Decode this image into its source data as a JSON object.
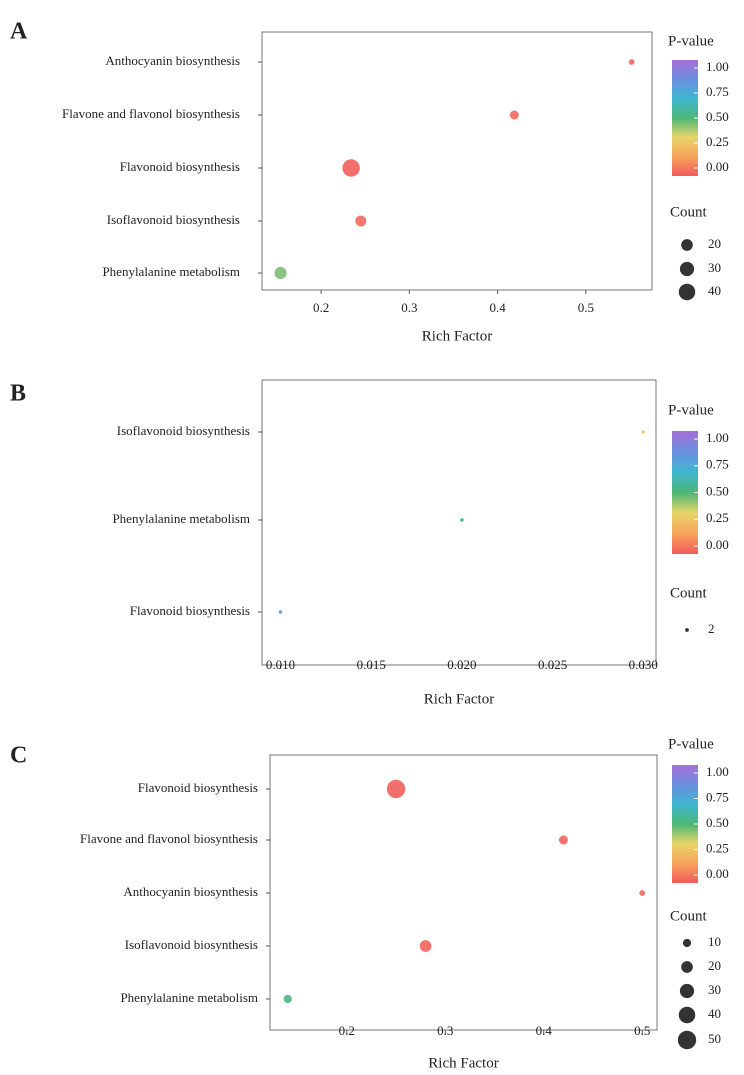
{
  "chart_data": [
    {
      "type": "bubble",
      "panel": "A",
      "x_label": "Rich Factor",
      "categories": [
        "Anthocyanin biosynthesis",
        "Flavone and flavonol biosynthesis",
        "Flavonoid biosynthesis",
        "Isoflavonoid biosynthesis",
        "Phenylalanine metabolism"
      ],
      "values": [
        0.552,
        0.419,
        0.234,
        0.245,
        0.154
      ],
      "counts": [
        5,
        12,
        45,
        18,
        22
      ],
      "pvalues": [
        0.02,
        0.03,
        0.01,
        0.03,
        0.45
      ],
      "xlim": [
        0.133,
        0.575
      ],
      "xticks": [
        0.2,
        0.3,
        0.4,
        0.5
      ],
      "color_title": "P-value",
      "color_ticks": [
        {
          "value": 1,
          "label": "1.00"
        },
        {
          "value": 0.75,
          "label": "0.75"
        },
        {
          "value": 0.5,
          "label": "0.50"
        },
        {
          "value": 0.25,
          "label": "0.25"
        },
        {
          "value": 0,
          "label": "0.00"
        }
      ],
      "colorscale": [
        "#f25b5b",
        "#f7a35c",
        "#e8d56a",
        "#4bb676",
        "#3fb6cf",
        "#6b8fe0",
        "#a56fd6"
      ],
      "size_title": "Count",
      "size_legend": [
        20,
        30,
        40
      ]
    },
    {
      "type": "bubble",
      "panel": "B",
      "x_label": "Rich Factor",
      "categories": [
        "Isoflavonoid biosynthesis",
        "Phenylalanine metabolism",
        "Flavonoid biosynthesis"
      ],
      "values": [
        0.03,
        0.02,
        0.01
      ],
      "counts": [
        2,
        2,
        2
      ],
      "pvalues": [
        0.3,
        0.55,
        0.75
      ],
      "xlim": [
        0.00898,
        0.0307
      ],
      "xticks": [
        {
          "value": 0.01,
          "label": "0.010"
        },
        {
          "value": 0.015,
          "label": "0.015"
        },
        {
          "value": 0.02,
          "label": "0.020"
        },
        {
          "value": 0.025,
          "label": "0.025"
        },
        {
          "value": 0.03,
          "label": "0.030"
        }
      ],
      "color_title": "P-value",
      "color_ticks": [
        {
          "value": 1,
          "label": "1.00"
        },
        {
          "value": 0.75,
          "label": "0.75"
        },
        {
          "value": 0.5,
          "label": "0.50"
        },
        {
          "value": 0.25,
          "label": "0.25"
        },
        {
          "value": 0,
          "label": "0.00"
        }
      ],
      "colorscale": [
        "#f25b5b",
        "#f7a35c",
        "#e8d56a",
        "#4bb676",
        "#3fb6cf",
        "#6b8fe0",
        "#a56fd6"
      ],
      "size_title": "Count",
      "size_legend": [
        2
      ]
    },
    {
      "type": "bubble",
      "panel": "C",
      "x_label": "Rich Factor",
      "categories": [
        "Flavonoid biosynthesis",
        "Flavone and flavonol biosynthesis",
        "Anthocyanin biosynthesis",
        "Isoflavonoid biosynthesis",
        "Phenylalanine metabolism"
      ],
      "values": [
        0.25,
        0.42,
        0.5,
        0.28,
        0.14
      ],
      "counts": [
        50,
        12,
        5,
        20,
        10
      ],
      "pvalues": [
        0.01,
        0.02,
        0.03,
        0.02,
        0.52
      ],
      "xlim": [
        0.122,
        0.515
      ],
      "xticks": [
        0.2,
        0.3,
        0.4,
        0.5
      ],
      "color_title": "P-value",
      "color_ticks": [
        {
          "value": 1,
          "label": "1.00"
        },
        {
          "value": 0.75,
          "label": "0.75"
        },
        {
          "value": 0.5,
          "label": "0.50"
        },
        {
          "value": 0.25,
          "label": "0.25"
        },
        {
          "value": 0,
          "label": "0.00"
        }
      ],
      "colorscale": [
        "#f25b5b",
        "#f7a35c",
        "#e8d56a",
        "#4bb676",
        "#3fb6cf",
        "#6b8fe0",
        "#a56fd6"
      ],
      "size_title": "Count",
      "size_legend": [
        10,
        20,
        30,
        40,
        50
      ]
    }
  ]
}
